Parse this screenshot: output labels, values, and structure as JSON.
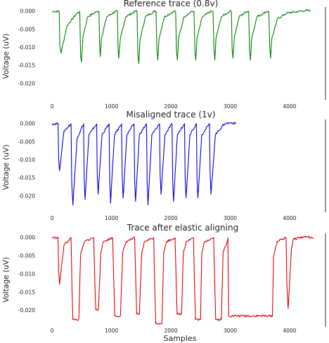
{
  "chart_data": [
    {
      "type": "line",
      "title": "Reference trace (0.8v)",
      "xlabel": "",
      "ylabel": "Voltage (uV)",
      "color": "#008000",
      "xlim": [
        -250,
        4450
      ],
      "ylim": [
        -0.0245,
        0.0012
      ],
      "xticks": [
        0,
        1000,
        2000,
        3000,
        4000
      ],
      "yticks": [
        0.0,
        -0.005,
        -0.01,
        -0.015,
        -0.02
      ],
      "xtick_labels": [
        "0",
        "1000",
        "2000",
        "3000",
        "4000"
      ],
      "ytick_labels": [
        "0.000",
        "-0.005",
        "-0.010",
        "-0.015",
        "-0.020"
      ],
      "x": [
        0,
        120,
        130,
        150,
        250,
        420,
        465,
        480,
        495,
        520,
        600,
        760,
        790,
        800,
        812,
        830,
        920,
        1070,
        1100,
        1110,
        1122,
        1150,
        1240,
        1400,
        1430,
        1445,
        1460,
        1480,
        1570,
        1720,
        1750,
        1765,
        1780,
        1800,
        1890,
        2050,
        2080,
        2095,
        2110,
        2130,
        2220,
        2360,
        2390,
        2405,
        2420,
        2440,
        2530,
        2680,
        2710,
        2725,
        2740,
        2760,
        2850,
        2990,
        3020,
        3030,
        3045,
        3070,
        3150,
        3280,
        3310,
        3325,
        3340,
        3360,
        3450,
        3620,
        3650,
        3665,
        3680,
        3700,
        3800,
        3950,
        4150,
        4350
      ],
      "y": [
        0.0,
        0.0,
        -0.0095,
        -0.0115,
        -0.004,
        -0.0005,
        0.0,
        -0.0125,
        -0.014,
        -0.007,
        -0.0015,
        0.0,
        0.0,
        -0.0095,
        -0.0125,
        -0.0075,
        -0.0015,
        0.0,
        0.0,
        -0.01,
        -0.013,
        -0.0075,
        -0.0015,
        0.0,
        0.0,
        -0.012,
        -0.0145,
        -0.008,
        -0.0015,
        0.0,
        0.0,
        -0.0105,
        -0.0135,
        -0.0075,
        -0.0015,
        0.0,
        0.0,
        -0.011,
        -0.0135,
        -0.0075,
        -0.0015,
        0.0,
        0.0,
        -0.011,
        -0.0135,
        -0.0075,
        -0.0015,
        0.0,
        0.0,
        -0.01,
        -0.0135,
        -0.0075,
        -0.0015,
        0.0,
        0.0,
        -0.01,
        -0.013,
        -0.007,
        -0.0015,
        0.0,
        0.0,
        -0.0105,
        -0.0135,
        -0.0075,
        -0.0015,
        0.0,
        0.0,
        -0.01,
        -0.013,
        -0.0075,
        -0.002,
        -0.0005,
        0.0,
        0.0003
      ]
    },
    {
      "type": "line",
      "title": "Misaligned trace (1v)",
      "xlabel": "",
      "ylabel": "Voltage (uV)",
      "color": "#0000dd",
      "xlim": [
        -250,
        4450
      ],
      "ylim": [
        -0.0245,
        0.0012
      ],
      "xticks": [
        0,
        1000,
        2000,
        3000,
        4000
      ],
      "yticks": [
        0.0,
        -0.005,
        -0.01,
        -0.015,
        -0.02
      ],
      "xtick_labels": [
        "0",
        "1000",
        "2000",
        "3000",
        "4000"
      ],
      "ytick_labels": [
        "0.000",
        "-0.005",
        "-0.010",
        "-0.015",
        "-0.020"
      ],
      "x": [
        0,
        100,
        110,
        125,
        200,
        320,
        330,
        350,
        420,
        530,
        540,
        555,
        620,
        750,
        760,
        775,
        840,
        960,
        970,
        985,
        1050,
        1170,
        1180,
        1195,
        1260,
        1380,
        1390,
        1405,
        1470,
        1590,
        1600,
        1615,
        1680,
        1810,
        1820,
        1835,
        1900,
        2020,
        2030,
        2045,
        2110,
        2230,
        2240,
        2255,
        2320,
        2430,
        2440,
        2455,
        2520,
        2650,
        2660,
        2675,
        2750,
        2900,
        3000,
        3100
      ],
      "y": [
        0.0,
        0.0,
        -0.0095,
        -0.013,
        -0.002,
        0.0,
        -0.016,
        -0.0225,
        -0.004,
        0.0,
        -0.015,
        -0.021,
        -0.003,
        0.0,
        -0.014,
        -0.0195,
        -0.003,
        0.0,
        -0.016,
        -0.022,
        -0.003,
        0.0,
        -0.0145,
        -0.0205,
        -0.003,
        0.0,
        -0.0155,
        -0.0215,
        -0.003,
        0.0,
        -0.016,
        -0.0225,
        -0.003,
        0.0,
        -0.014,
        -0.0195,
        -0.003,
        0.0,
        -0.0155,
        -0.0215,
        -0.003,
        0.0,
        -0.0145,
        -0.0205,
        -0.003,
        0.0,
        -0.015,
        -0.0205,
        -0.003,
        0.0,
        -0.0135,
        -0.0195,
        -0.003,
        0.0,
        0.0003,
        0.0001
      ]
    },
    {
      "type": "line",
      "title": "Trace after elastic aligning",
      "xlabel": "Samples",
      "ylabel": "Voltage (uV)",
      "color": "#dd0000",
      "xlim": [
        -250,
        4450
      ],
      "ylim": [
        -0.0245,
        0.0012
      ],
      "xticks": [
        0,
        1000,
        2000,
        3000,
        4000
      ],
      "yticks": [
        0.0,
        -0.005,
        -0.01,
        -0.015,
        -0.02
      ],
      "xtick_labels": [
        "0",
        "1000",
        "2000",
        "3000",
        "4000"
      ],
      "ytick_labels": [
        "0.000",
        "-0.005",
        "-0.010",
        "-0.015",
        "-0.020"
      ],
      "x": [
        0,
        100,
        110,
        125,
        200,
        320,
        335,
        350,
        450,
        480,
        550,
        700,
        720,
        735,
        780,
        820,
        870,
        1020,
        1040,
        1055,
        1150,
        1190,
        1250,
        1390,
        1410,
        1425,
        1470,
        1510,
        1560,
        1710,
        1730,
        1745,
        1850,
        1880,
        1930,
        2070,
        2090,
        2105,
        2180,
        2210,
        2260,
        2380,
        2400,
        2415,
        2500,
        2520,
        2570,
        2720,
        2740,
        2755,
        2850,
        2880,
        2950,
        2960,
        2975,
        3710,
        3730,
        3790,
        3940,
        3955,
        3975,
        4030,
        4060,
        4150,
        4300,
        4400
      ],
      "y": [
        0.0,
        0.0,
        -0.009,
        -0.0128,
        -0.002,
        0.0,
        -0.014,
        -0.0225,
        -0.0225,
        -0.0045,
        -0.001,
        0.0,
        -0.012,
        -0.0198,
        -0.0198,
        -0.004,
        -0.001,
        0.0,
        -0.013,
        -0.0215,
        -0.0215,
        -0.004,
        -0.001,
        0.0,
        -0.0125,
        -0.021,
        -0.021,
        -0.004,
        -0.001,
        0.0,
        -0.014,
        -0.0235,
        -0.0235,
        -0.004,
        -0.001,
        0.0,
        -0.0125,
        -0.021,
        -0.021,
        -0.004,
        -0.001,
        0.0,
        -0.0135,
        -0.0225,
        -0.0225,
        -0.0045,
        -0.001,
        0.0,
        -0.0135,
        -0.0225,
        -0.0225,
        -0.004,
        -0.001,
        0.0,
        -0.0215,
        -0.0215,
        -0.005,
        -0.001,
        0.0,
        -0.0135,
        -0.0195,
        -0.003,
        -0.0005,
        0.0,
        0.0003,
        -0.0003
      ]
    }
  ]
}
